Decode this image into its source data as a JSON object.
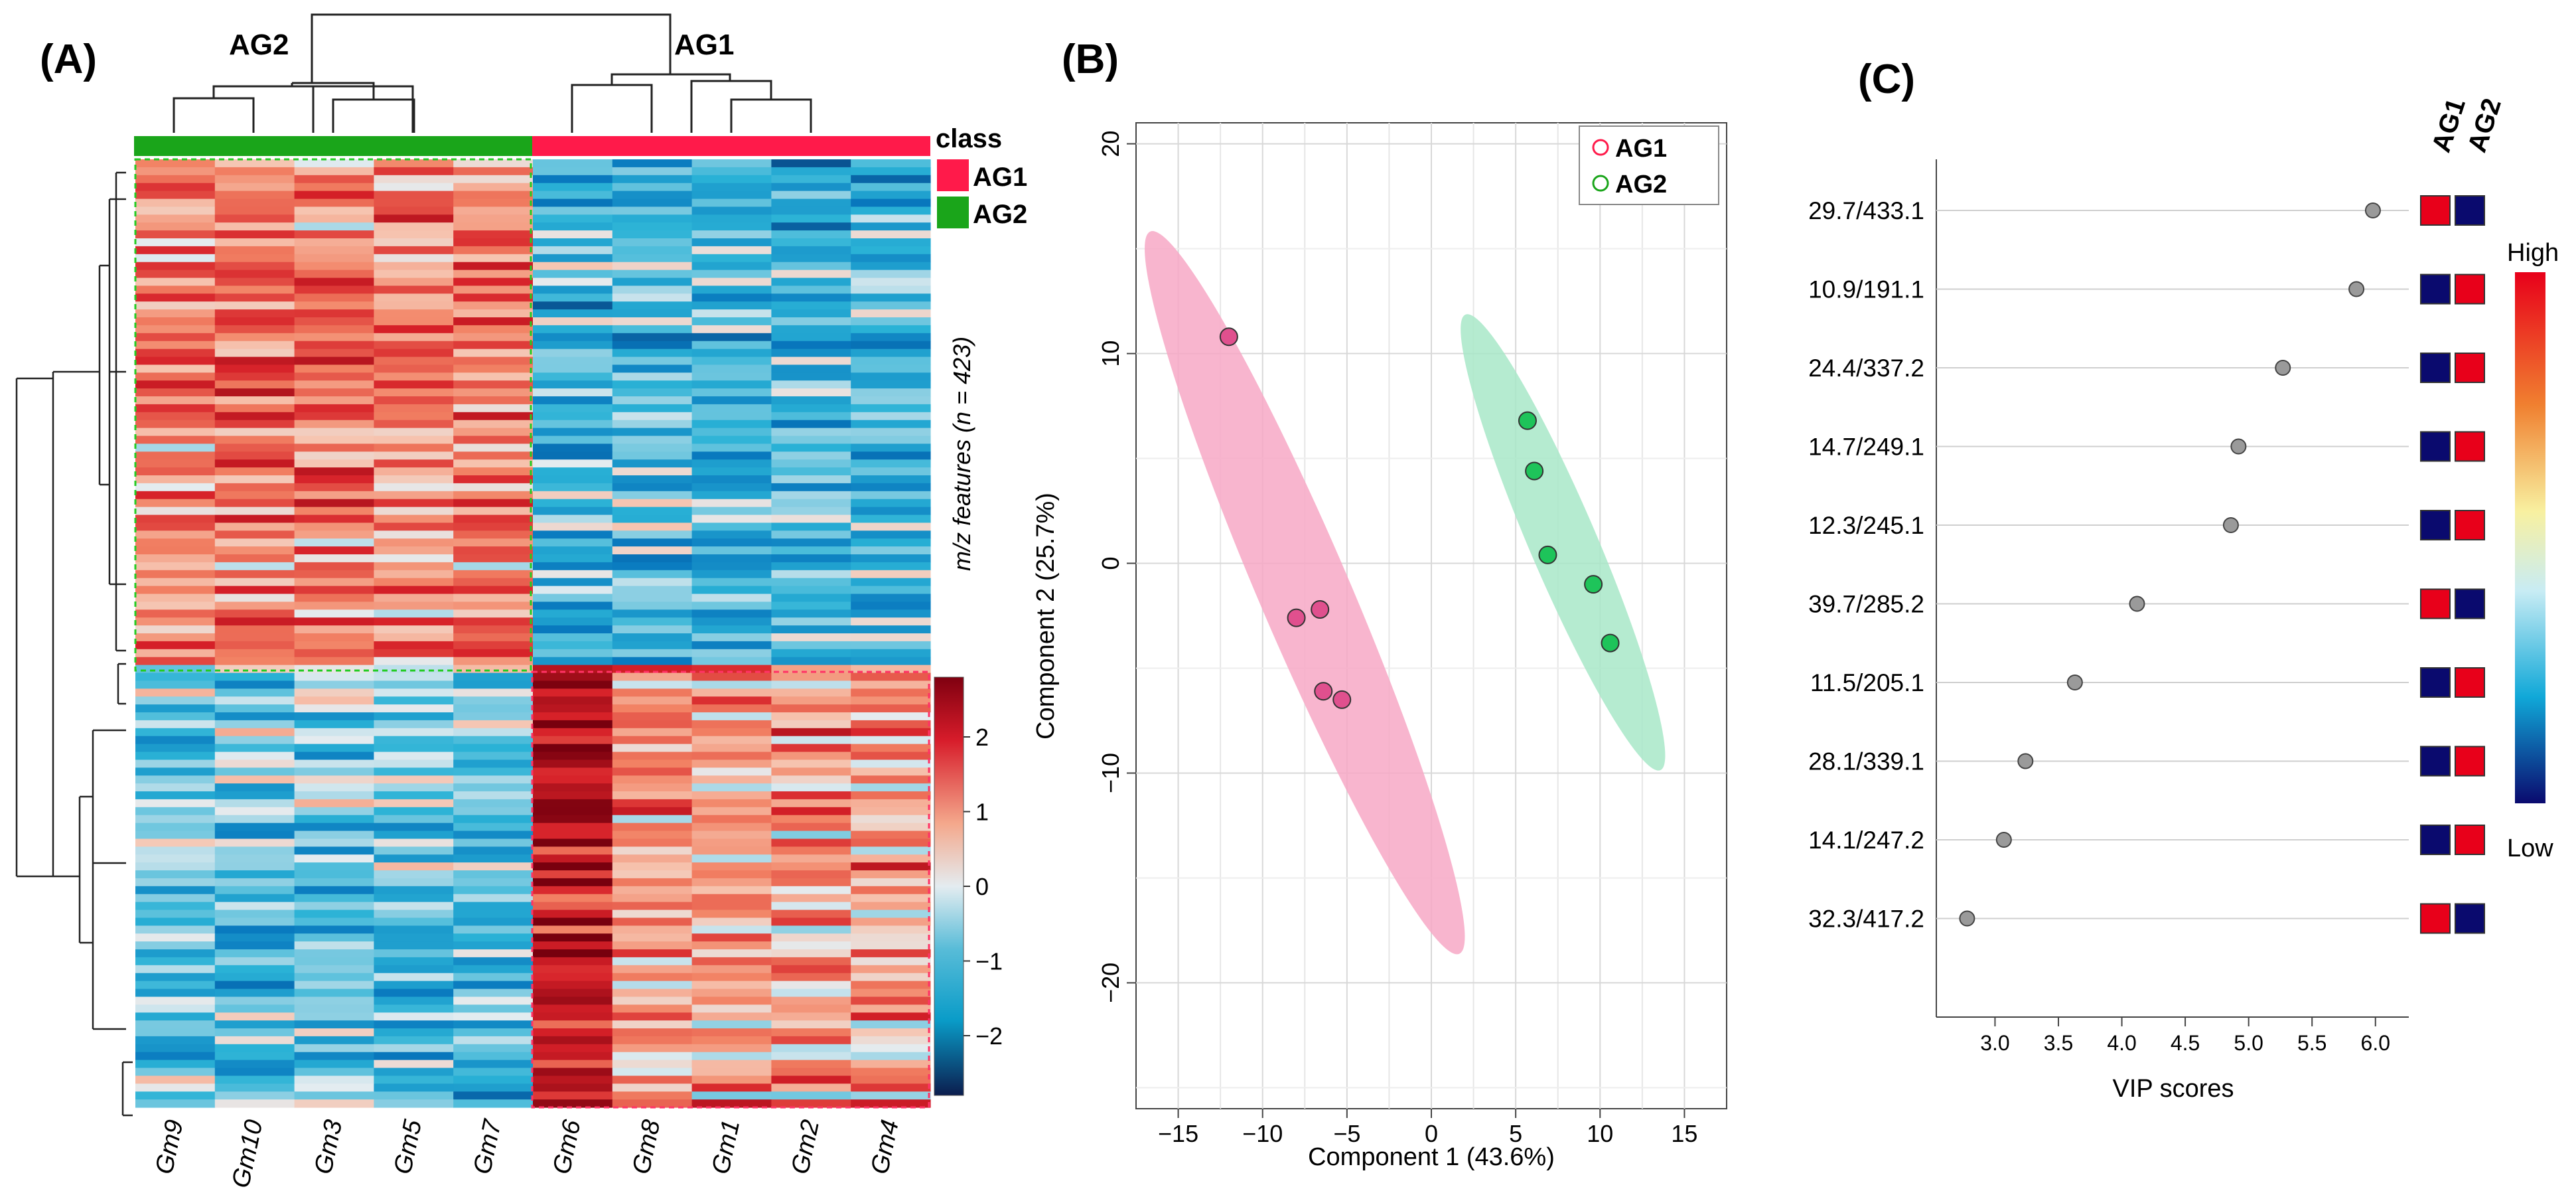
{
  "panel_labels": {
    "a": "(A)",
    "b": "(B)",
    "c": "(C)"
  },
  "colors": {
    "ag1": "#ff1a4a",
    "ag2": "#1aa51a",
    "low": "#0a0a6e",
    "high": "#e8001a",
    "pca_ag1_fill": "#f7a8c6",
    "pca_ag1_point": "#e0508e",
    "pca_ag2_fill": "#a8e8c8",
    "pca_ag2_point": "#1ec45a"
  },
  "chart_data": [
    {
      "type": "heatmap",
      "panel": "A",
      "clusters": [
        "AG2",
        "AG1"
      ],
      "columns": [
        "Gm9",
        "Gm10",
        "Gm3",
        "Gm5",
        "Gm7",
        "Gm6",
        "Gm8",
        "Gm1",
        "Gm2",
        "Gm4"
      ],
      "column_class": [
        "AG2",
        "AG2",
        "AG2",
        "AG2",
        "AG2",
        "AG1",
        "AG1",
        "AG1",
        "AG1",
        "AG1"
      ],
      "class_legend_title": "class",
      "class_legend": [
        "AG1",
        "AG2"
      ],
      "row_axis_label": "m/z features (n = 423)",
      "n_features": 423,
      "colorscale_ticks": [
        2,
        1,
        0,
        -1,
        -2
      ],
      "colorscale_tick_labels": [
        "2",
        "1",
        "0",
        "−1",
        "−2"
      ],
      "colorscale_range": [
        -2.8,
        2.8
      ],
      "block_means": [
        {
          "rows": "upper",
          "AG2": 1.0,
          "AG1": -0.9
        },
        {
          "rows": "lower",
          "AG2": -0.7,
          "AG1": 0.8
        }
      ]
    },
    {
      "type": "scatter",
      "panel": "B",
      "xlabel": "Component 1 (43.6%)",
      "ylabel": "Component 2 (25.7%)",
      "xlim": [
        -17.5,
        17.5
      ],
      "ylim": [
        -26,
        21
      ],
      "xticks": [
        -15,
        -10,
        -5,
        0,
        5,
        10,
        15
      ],
      "xtick_labels": [
        "−15",
        "−10",
        "−5",
        "0",
        "5",
        "10",
        "15"
      ],
      "yticks": [
        20,
        10,
        0,
        -10,
        -20
      ],
      "ytick_labels": [
        "20",
        "10",
        "0",
        "−10",
        "−20"
      ],
      "grid": true,
      "legend": [
        "AG1",
        "AG2"
      ],
      "legend_position": "top-right",
      "series": [
        {
          "name": "AG1",
          "x": [
            -12.0,
            -8.0,
            -6.6,
            -6.4,
            -5.3
          ],
          "y": [
            10.8,
            -2.6,
            -2.2,
            -6.1,
            -6.5
          ],
          "ellipse": {
            "cx": -7.5,
            "cy": -1.4,
            "angle": -62,
            "semi_major": 19.5,
            "semi_minor": 2.7
          }
        },
        {
          "name": "AG2",
          "x": [
            5.7,
            6.1,
            6.9,
            9.6,
            10.6
          ],
          "y": [
            6.8,
            4.4,
            0.4,
            -1.0,
            -3.8
          ],
          "ellipse": {
            "cx": 7.8,
            "cy": 1.0,
            "angle": -62,
            "semi_major": 12.3,
            "semi_minor": 2.0
          }
        }
      ]
    },
    {
      "type": "scatter",
      "panel": "C",
      "subtype": "vip_dot_plot",
      "xlabel": "VIP scores",
      "xlim": [
        2.6,
        6.2
      ],
      "xticks": [
        3.0,
        3.5,
        4.0,
        4.5,
        5.0,
        5.5,
        6.0
      ],
      "xtick_labels": [
        "3.0",
        "3.5",
        "4.0",
        "4.5",
        "5.0",
        "5.5",
        "6.0"
      ],
      "features": [
        "29.7/433.1",
        "10.9/191.1",
        "24.4/337.2",
        "14.7/249.1",
        "12.3/245.1",
        "39.7/285.2",
        "11.5/205.1",
        "28.1/339.1",
        "14.1/247.2",
        "32.3/417.2"
      ],
      "vip": [
        5.98,
        5.85,
        5.27,
        4.92,
        4.86,
        4.12,
        3.63,
        3.24,
        3.07,
        2.78
      ],
      "group_columns": [
        "AG1",
        "AG2"
      ],
      "higher_in": [
        "AG1",
        "AG2",
        "AG2",
        "AG2",
        "AG2",
        "AG1",
        "AG2",
        "AG2",
        "AG2",
        "AG1"
      ],
      "colorbar_labels": {
        "high": "High",
        "low": "Low"
      }
    }
  ]
}
